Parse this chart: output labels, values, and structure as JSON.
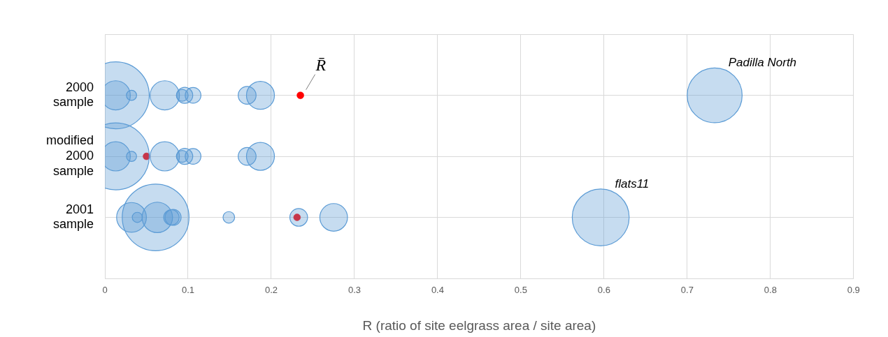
{
  "chart_data": {
    "type": "bubble",
    "orientation": "horizontal",
    "categories": [
      "2000 sample",
      "modified 2000 sample",
      "2001 sample"
    ],
    "xlabel": "R (ratio of site eelgrass area / site area)",
    "xlim": [
      0,
      0.9
    ],
    "xticks": [
      0,
      0.1,
      0.2,
      0.3,
      0.4,
      0.5,
      0.6,
      0.7,
      0.8,
      0.9
    ],
    "grid": true,
    "legend": false,
    "series": [
      {
        "type": "bubble",
        "color": "#5b9bd5",
        "x": [
          "2000 sample",
          "2000 sample",
          "2000 sample",
          "2000 sample",
          "2000 sample",
          "2000 sample",
          "2000 sample",
          "2000 sample",
          "2000 sample",
          "2000 sample",
          "modified 2000 sample",
          "modified 2000 sample",
          "modified 2000 sample",
          "modified 2000 sample",
          "modified 2000 sample",
          "modified 2000 sample",
          "modified 2000 sample",
          "modified 2000 sample",
          "modified 2000 sample",
          "2001 sample",
          "2001 sample",
          "2001 sample",
          "2001 sample",
          "2001 sample",
          "2001 sample",
          "2001 sample",
          "2001 sample",
          "2001 sample",
          "2001 sample"
        ],
        "values": [
          0.013,
          0.013,
          0.032,
          0.072,
          0.093,
          0.096,
          0.106,
          0.171,
          0.187,
          0.733,
          0.013,
          0.013,
          0.032,
          0.072,
          0.093,
          0.096,
          0.106,
          0.171,
          0.187,
          0.032,
          0.039,
          0.061,
          0.063,
          0.08,
          0.082,
          0.149,
          0.233,
          0.275,
          0.596
        ],
        "sizes": [
          0.19,
          1,
          0.023,
          0.19,
          0.031,
          0.057,
          0.055,
          0.071,
          0.174,
          0.67,
          0.19,
          1,
          0.023,
          0.19,
          0.031,
          0.057,
          0.055,
          0.071,
          0.174,
          0.197,
          0.023,
          0.99,
          0.206,
          0.053,
          0.057,
          0.03,
          0.07,
          0.17,
          0.72
        ]
      },
      {
        "type": "scatter",
        "color": "#ff0000",
        "marker": "circle",
        "x": [
          "2000 sample",
          "modified 2000 sample",
          "2001 sample"
        ],
        "values": [
          0.235,
          0.05,
          0.231
        ]
      }
    ],
    "annotations": [
      {
        "text": "R̄",
        "x": 0.235,
        "y": "2000 sample"
      },
      {
        "text": "Padilla North",
        "x": 0.733,
        "y": "2000 sample"
      },
      {
        "text": "flats11",
        "x": 0.596,
        "y": "2001 sample"
      }
    ]
  }
}
